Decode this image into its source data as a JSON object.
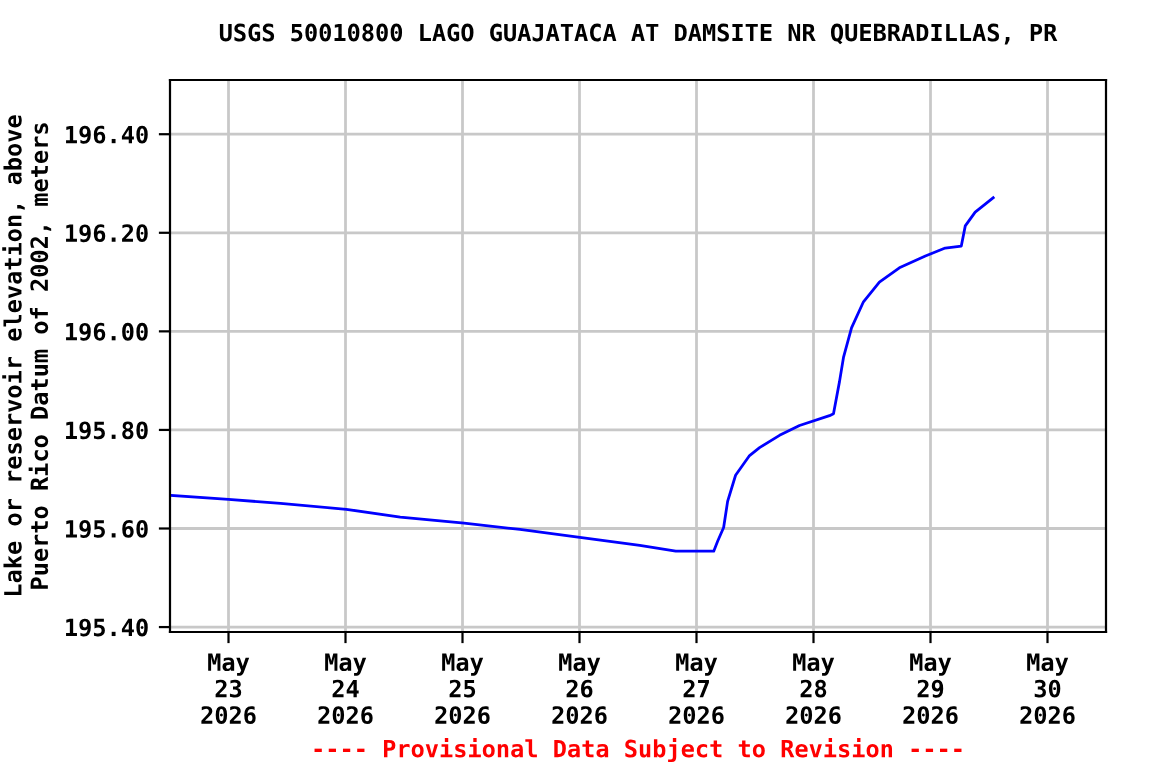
{
  "chart_data": {
    "type": "line",
    "title": "USGS 50010800 LAGO GUAJATACA AT DAMSITE NR QUEBRADILLAS, PR",
    "ylabel": "Lake or reservoir elevation, above\nPuerto Rico Datum of 2002, meters",
    "annotations": [
      "---- Provisional Data Subject to Revision ----"
    ],
    "series": [
      {
        "color": "#0000ff",
        "x": [
          "2026-05-22T12:15",
          "2026-05-23T00:00",
          "2026-05-23T10:40",
          "2026-05-24T00:10",
          "2026-05-24T11:14",
          "2026-05-25T00:20",
          "2026-05-25T11:47",
          "2026-05-26T00:04",
          "2026-05-26T12:22",
          "2026-05-26T19:45",
          "2026-05-27T03:32",
          "2026-05-27T04:20",
          "2026-05-27T05:34",
          "2026-05-27T06:23",
          "2026-05-27T08:01",
          "2026-05-27T10:53",
          "2026-05-27T12:56",
          "2026-05-27T17:02",
          "2026-05-27T21:08",
          "2026-05-28T03:17",
          "2026-05-28T04:06",
          "2026-05-28T05:20",
          "2026-05-28T06:09",
          "2026-05-28T07:48",
          "2026-05-28T10:15",
          "2026-05-28T13:31",
          "2026-05-28T17:37",
          "2026-05-28T22:57",
          "2026-05-29T03:01",
          "2026-05-29T06:19",
          "2026-05-29T07:08",
          "2026-05-29T09:10",
          "2026-05-29T12:52"
        ],
        "values": [
          195.667,
          195.659,
          195.651,
          195.639,
          195.623,
          195.611,
          195.598,
          195.582,
          195.566,
          195.554,
          195.554,
          195.574,
          195.602,
          195.655,
          195.708,
          195.748,
          195.764,
          195.789,
          195.809,
          195.829,
          195.833,
          195.898,
          195.947,
          196.007,
          196.06,
          196.1,
          196.129,
          196.153,
          196.169,
          196.173,
          196.214,
          196.242,
          196.271
        ]
      }
    ],
    "xlim": [
      "2026-05-22T12:00",
      "2026-05-30T12:00"
    ],
    "xticks": [
      {
        "value": "2026-05-23",
        "label": "May\n23\n2026"
      },
      {
        "value": "2026-05-24",
        "label": "May\n24\n2026"
      },
      {
        "value": "2026-05-25",
        "label": "May\n25\n2026"
      },
      {
        "value": "2026-05-26",
        "label": "May\n26\n2026"
      },
      {
        "value": "2026-05-27",
        "label": "May\n27\n2026"
      },
      {
        "value": "2026-05-28",
        "label": "May\n28\n2026"
      },
      {
        "value": "2026-05-29",
        "label": "May\n29\n2026"
      },
      {
        "value": "2026-05-30",
        "label": "May\n30\n2026"
      }
    ],
    "ylim": [
      195.39,
      196.51
    ],
    "yticks": [
      {
        "value": 195.4,
        "label": "195.40"
      },
      {
        "value": 195.6,
        "label": "195.60"
      },
      {
        "value": 195.8,
        "label": "195.80"
      },
      {
        "value": 196.0,
        "label": "196.00"
      },
      {
        "value": 196.2,
        "label": "196.20"
      },
      {
        "value": 196.4,
        "label": "196.40"
      }
    ],
    "grid": true,
    "legend": false,
    "marker": "none",
    "line_style": "solid"
  }
}
